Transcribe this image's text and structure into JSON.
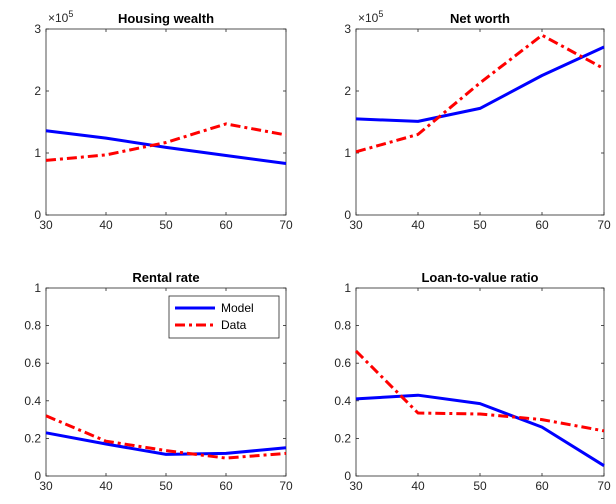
{
  "chart_data": [
    {
      "type": "line",
      "title": "Housing wealth",
      "exponent_label": "×10",
      "exponent_power": "5",
      "x": [
        30,
        40,
        50,
        60,
        70
      ],
      "xlim": [
        30,
        70
      ],
      "ylim": [
        0,
        3
      ],
      "xticks": [
        "30",
        "40",
        "50",
        "60",
        "70"
      ],
      "yticks": [
        "0",
        "1",
        "2",
        "3"
      ],
      "xtick_values": [
        30,
        40,
        50,
        60,
        70
      ],
      "ytick_values": [
        0,
        1,
        2,
        3
      ],
      "series": [
        {
          "name": "Model",
          "values": [
            1.36,
            1.24,
            1.09,
            0.96,
            0.83
          ],
          "color": "#0000ff",
          "style": "solid"
        },
        {
          "name": "Data",
          "values": [
            0.88,
            0.97,
            1.17,
            1.47,
            1.29
          ],
          "color": "#ff0000",
          "style": "dashdot"
        }
      ]
    },
    {
      "type": "line",
      "title": "Net worth",
      "exponent_label": "×10",
      "exponent_power": "5",
      "x": [
        30,
        40,
        50,
        60,
        70
      ],
      "xlim": [
        30,
        70
      ],
      "ylim": [
        0,
        3
      ],
      "xticks": [
        "30",
        "40",
        "50",
        "60",
        "70"
      ],
      "yticks": [
        "0",
        "1",
        "2",
        "3"
      ],
      "xtick_values": [
        30,
        40,
        50,
        60,
        70
      ],
      "ytick_values": [
        0,
        1,
        2,
        3
      ],
      "series": [
        {
          "name": "Model",
          "values": [
            1.55,
            1.51,
            1.72,
            2.25,
            2.71
          ],
          "color": "#0000ff",
          "style": "solid"
        },
        {
          "name": "Data",
          "values": [
            1.02,
            1.3,
            2.13,
            2.9,
            2.36
          ],
          "color": "#ff0000",
          "style": "dashdot"
        }
      ]
    },
    {
      "type": "line",
      "title": "Rental rate",
      "x": [
        30,
        40,
        50,
        60,
        70
      ],
      "xlim": [
        30,
        70
      ],
      "ylim": [
        0,
        1
      ],
      "xticks": [
        "30",
        "40",
        "50",
        "60",
        "70"
      ],
      "yticks": [
        "0",
        "0.2",
        "0.4",
        "0.6",
        "0.8",
        "1"
      ],
      "xtick_values": [
        30,
        40,
        50,
        60,
        70
      ],
      "ytick_values": [
        0,
        0.2,
        0.4,
        0.6,
        0.8,
        1
      ],
      "legend": {
        "placement": "top-right",
        "entries": [
          "Model",
          "Data"
        ]
      },
      "series": [
        {
          "name": "Model",
          "values": [
            0.23,
            0.17,
            0.115,
            0.12,
            0.15
          ],
          "color": "#0000ff",
          "style": "solid"
        },
        {
          "name": "Data",
          "values": [
            0.32,
            0.185,
            0.135,
            0.095,
            0.12
          ],
          "color": "#ff0000",
          "style": "dashdot"
        }
      ]
    },
    {
      "type": "line",
      "title": "Loan-to-value ratio",
      "x": [
        30,
        40,
        50,
        60,
        70
      ],
      "xlim": [
        30,
        70
      ],
      "ylim": [
        0,
        1
      ],
      "xticks": [
        "30",
        "40",
        "50",
        "60",
        "70"
      ],
      "yticks": [
        "0",
        "0.2",
        "0.4",
        "0.6",
        "0.8",
        "1"
      ],
      "xtick_values": [
        30,
        40,
        50,
        60,
        70
      ],
      "ytick_values": [
        0,
        0.2,
        0.4,
        0.6,
        0.8,
        1
      ],
      "series": [
        {
          "name": "Model",
          "values": [
            0.41,
            0.43,
            0.385,
            0.26,
            0.055
          ],
          "color": "#0000ff",
          "style": "solid"
        },
        {
          "name": "Data",
          "values": [
            0.665,
            0.335,
            0.33,
            0.3,
            0.24
          ],
          "color": "#ff0000",
          "style": "dashdot"
        }
      ]
    }
  ]
}
